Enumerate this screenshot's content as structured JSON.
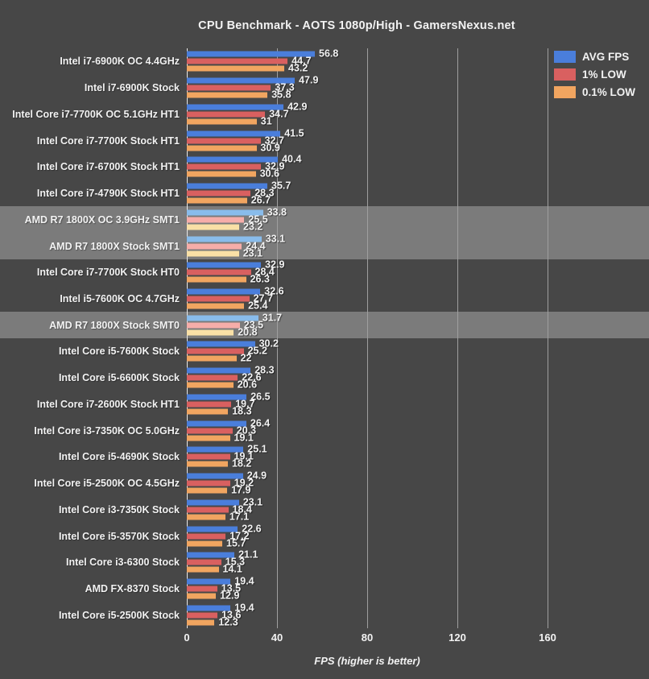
{
  "title": "CPU Benchmark - AOTS 1080p/High - GamersNexus.net",
  "colors": {
    "background": "#474747",
    "highlight_band": "#7B7B7B",
    "text": "#F2F2F2",
    "gridline": "#9F9F9F",
    "axis_line": "#E8E8E8",
    "avg": "#4A7EDB",
    "low1": "#D96060",
    "low01": "#F1A560",
    "avg_hl": "#89BCEB",
    "low1_hl": "#F6ADA9",
    "low01_hl": "#F9E0A6"
  },
  "legend": [
    {
      "label": "AVG FPS",
      "color_key": "avg"
    },
    {
      "label": "1% LOW",
      "color_key": "low1"
    },
    {
      "label": "0.1% LOW",
      "color_key": "low01"
    }
  ],
  "chart_data": {
    "type": "bar",
    "orientation": "horizontal",
    "title": "CPU Benchmark - AOTS 1080p/High - GamersNexus.net",
    "xlabel": "FPS (higher is better)",
    "xlim": [
      0,
      160
    ],
    "x_ticks": [
      0,
      40,
      80,
      120,
      160
    ],
    "grid": true,
    "legend_position": "top-right",
    "series_names": [
      "AVG FPS",
      "1% LOW",
      "0.1% LOW"
    ],
    "rows": [
      {
        "label": "Intel i7-6900K OC 4.4GHz",
        "values": [
          "56.8",
          "44.7",
          "43.2"
        ],
        "highlight": false
      },
      {
        "label": "Intel i7-6900K Stock",
        "values": [
          "47.9",
          "37.3",
          "35.8"
        ],
        "highlight": false
      },
      {
        "label": "Intel Core i7-7700K OC 5.1GHz HT1",
        "values": [
          "42.9",
          "34.7",
          "31"
        ],
        "highlight": false
      },
      {
        "label": "Intel Core i7-7700K Stock HT1",
        "values": [
          "41.5",
          "32.7",
          "30.9"
        ],
        "highlight": false
      },
      {
        "label": "Intel Core i7-6700K Stock HT1",
        "values": [
          "40.4",
          "32.9",
          "30.6"
        ],
        "highlight": false
      },
      {
        "label": "Intel Core i7-4790K Stock HT1",
        "values": [
          "35.7",
          "28.3",
          "26.7"
        ],
        "highlight": false
      },
      {
        "label": "AMD R7 1800X OC 3.9GHz SMT1",
        "values": [
          "33.8",
          "25.5",
          "23.2"
        ],
        "highlight": true
      },
      {
        "label": "AMD R7 1800X Stock SMT1",
        "values": [
          "33.1",
          "24.4",
          "23.1"
        ],
        "highlight": true
      },
      {
        "label": "Intel Core i7-7700K Stock HT0",
        "values": [
          "32.9",
          "28.4",
          "26.3"
        ],
        "highlight": false
      },
      {
        "label": "Intel i5-7600K OC 4.7GHz",
        "values": [
          "32.6",
          "27.7",
          "25.4"
        ],
        "highlight": false
      },
      {
        "label": "AMD R7 1800X Stock SMT0",
        "values": [
          "31.7",
          "23.5",
          "20.8"
        ],
        "highlight": true
      },
      {
        "label": "Intel Core i5-7600K Stock",
        "values": [
          "30.2",
          "25.2",
          "22"
        ],
        "highlight": false
      },
      {
        "label": "Intel Core i5-6600K Stock",
        "values": [
          "28.3",
          "22.6",
          "20.6"
        ],
        "highlight": false
      },
      {
        "label": "Intel Core i7-2600K Stock HT1",
        "values": [
          "26.5",
          "19.7",
          "18.3"
        ],
        "highlight": false
      },
      {
        "label": "Intel Core i3-7350K OC 5.0GHz",
        "values": [
          "26.4",
          "20.3",
          "19.1"
        ],
        "highlight": false
      },
      {
        "label": "Intel Core i5-4690K Stock",
        "values": [
          "25.1",
          "19.1",
          "18.2"
        ],
        "highlight": false
      },
      {
        "label": "Intel Core i5-2500K OC 4.5GHz",
        "values": [
          "24.9",
          "19.2",
          "17.9"
        ],
        "highlight": false
      },
      {
        "label": "Intel Core i3-7350K Stock",
        "values": [
          "23.1",
          "18.4",
          "17.1"
        ],
        "highlight": false
      },
      {
        "label": "Intel Core i5-3570K Stock",
        "values": [
          "22.6",
          "17.2",
          "15.7"
        ],
        "highlight": false
      },
      {
        "label": "Intel Core i3-6300 Stock",
        "values": [
          "21.1",
          "15.3",
          "14.1"
        ],
        "highlight": false
      },
      {
        "label": "AMD FX-8370 Stock",
        "values": [
          "19.4",
          "13.5",
          "12.9"
        ],
        "highlight": false
      },
      {
        "label": "Intel Core i5-2500K Stock",
        "values": [
          "19.4",
          "13.6",
          "12.3"
        ],
        "highlight": false
      }
    ]
  }
}
